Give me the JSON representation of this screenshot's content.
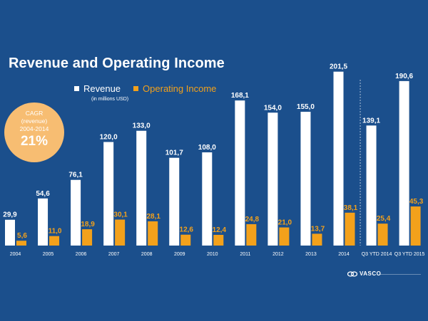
{
  "chart_data": {
    "type": "bar",
    "title": "Revenue and Operating Income",
    "subtitle": "(in millions USD)",
    "categories": [
      "2004",
      "2005",
      "2006",
      "2007",
      "2008",
      "2009",
      "2010",
      "2011",
      "2012",
      "2013",
      "2014",
      "Q3 YTD 2014",
      "Q3 YTD 2015"
    ],
    "series": [
      {
        "name": "Revenue",
        "color": "#ffffff",
        "values": [
          29.9,
          54.6,
          76.1,
          120.0,
          133.0,
          101.7,
          108.0,
          168.1,
          154.0,
          155.0,
          201.5,
          139.1,
          190.6
        ],
        "labels": [
          "29,9",
          "54,6",
          "76,1",
          "120,0",
          "133,0",
          "101,7",
          "108,0",
          "168,1",
          "154,0",
          "155,0",
          "201,5",
          "139,1",
          "190,6"
        ]
      },
      {
        "name": "Operating Income",
        "color": "#f3a11b",
        "values": [
          5.6,
          11.0,
          18.9,
          30.1,
          28.1,
          12.6,
          12.4,
          24.8,
          21.0,
          13.7,
          38.1,
          25.4,
          45.3
        ],
        "labels": [
          "5,6",
          "11,0",
          "18,9",
          "30,1",
          "28,1",
          "12,6",
          "12,4",
          "24,8",
          "21,0",
          "13,7",
          "38,1",
          "25,4",
          "45,3"
        ]
      }
    ],
    "grid": false,
    "legend": "top-left",
    "separator_before": "Q3 YTD 2014"
  },
  "cagr": {
    "line1": "CAGR",
    "line2": "(revenue)",
    "line3": "2004-2014",
    "value": "21%"
  },
  "logo": {
    "text": "VASCO"
  },
  "colors": {
    "background": "#1b4f8c",
    "revenue": "#ffffff",
    "operating_income": "#f3a11b",
    "cagr_badge": "#f7bd72"
  }
}
